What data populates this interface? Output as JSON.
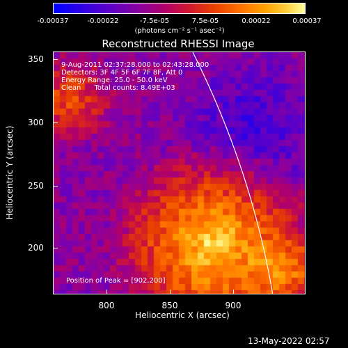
{
  "colorbar": {
    "ticks": [
      "-0.00037",
      "-0.00022",
      "-7.5e-05",
      "7.5e-05",
      "0.00022",
      "0.00037"
    ],
    "units": "(photons cm⁻² s⁻¹ asec⁻²)"
  },
  "title": "Reconstructed RHESSI Image",
  "annotations": {
    "time": "9-Aug-2011 02:37:28.000 to 02:43:28.000",
    "detectors": "Detectors: 3F 4F 5F 6F 7F 8F, Att 0",
    "energy": "Energy Range: 25.0 - 50.0 keV",
    "method": "Clean      Total counts: 8.49E+03",
    "peak": "Position of Peak = [902,200]"
  },
  "axes": {
    "xlabel": "Heliocentric X (arcsec)",
    "ylabel": "Heliocentric Y (arcsec)",
    "xticks": [
      "800",
      "850",
      "900"
    ],
    "yticks": [
      "350",
      "300",
      "250",
      "200"
    ]
  },
  "footer": "13-May-2022 02:57"
}
